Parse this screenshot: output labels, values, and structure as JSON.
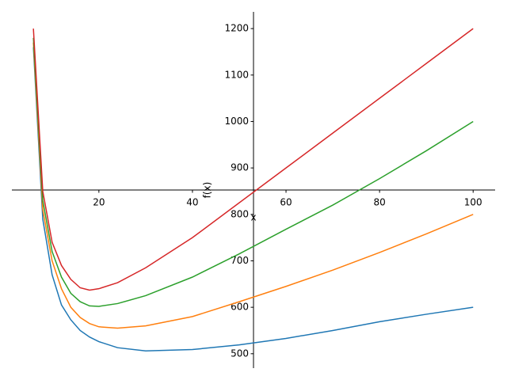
{
  "chart_data": {
    "type": "line",
    "xlabel": "x",
    "ylabel": "f(x)",
    "x": [
      6,
      8,
      10,
      12,
      14,
      16,
      18,
      20,
      24,
      30,
      40,
      50,
      60,
      70,
      80,
      90,
      100
    ],
    "series": [
      {
        "color": "#1f77b4",
        "values": [
          1160,
          790,
          670,
          605,
          573,
          550,
          536,
          526,
          513,
          506,
          509,
          519,
          533,
          550,
          569,
          585,
          600
        ]
      },
      {
        "color": "#ff7f0e",
        "values": [
          1170,
          810,
          700,
          640,
          600,
          578,
          565,
          558,
          555,
          560,
          580,
          612,
          645,
          680,
          718,
          758,
          800
        ]
      },
      {
        "color": "#2ca02c",
        "values": [
          1180,
          830,
          720,
          665,
          630,
          612,
          603,
          602,
          608,
          625,
          665,
          715,
          768,
          820,
          877,
          937,
          1000
        ]
      },
      {
        "color": "#d62728",
        "values": [
          1200,
          850,
          740,
          690,
          660,
          642,
          637,
          640,
          653,
          685,
          750,
          825,
          900,
          975,
          1050,
          1125,
          1200
        ]
      }
    ],
    "xlim": [
      1.4,
      104.7
    ],
    "ylim": [
      469,
      1236
    ],
    "xticks": [
      20,
      40,
      60,
      80,
      100
    ],
    "yticks": [
      500,
      600,
      700,
      800,
      900,
      1000,
      1100,
      1200
    ]
  }
}
